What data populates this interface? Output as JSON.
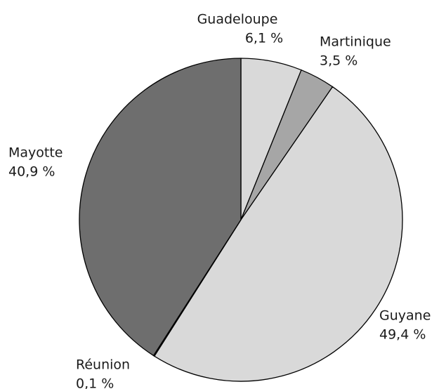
{
  "chart_data": {
    "type": "pie",
    "categories": [
      "Guadeloupe",
      "Martinique",
      "Guyane",
      "Réunion",
      "Mayotte"
    ],
    "values": [
      6.1,
      3.5,
      49.4,
      0.1,
      40.9
    ],
    "value_labels": [
      "6,1 %",
      "3,5 %",
      "49,4 %",
      "0,1 %",
      "40,9 %"
    ],
    "colors": [
      "#d9d9d9",
      "#a6a6a6",
      "#d9d9d9",
      "#a6a6a6",
      "#6e6e6e"
    ]
  }
}
